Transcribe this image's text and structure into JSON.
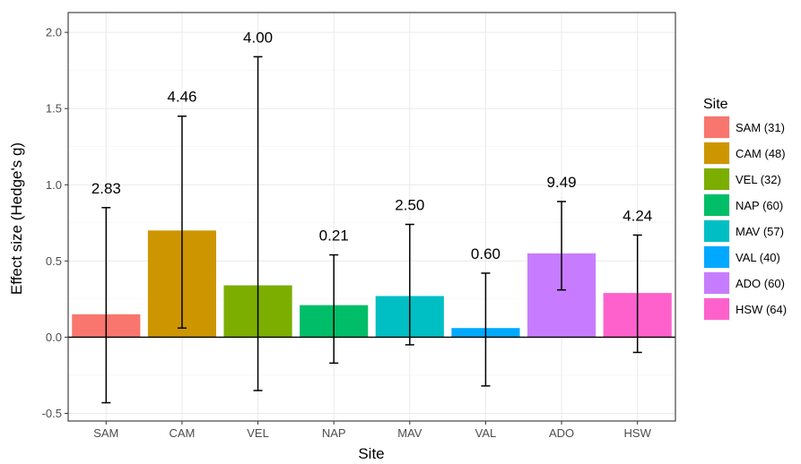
{
  "chart_data": {
    "type": "bar",
    "xlabel": "Site",
    "ylabel": "Effect size (Hedge's g)",
    "ylim": [
      -0.55,
      2.13
    ],
    "yticks": [
      -0.5,
      0.0,
      0.5,
      1.0,
      1.5,
      2.0
    ],
    "ytick_labels": [
      "-0.5",
      "0.0",
      "0.5",
      "1.0",
      "1.5",
      "2.0"
    ],
    "categories": [
      "SAM",
      "CAM",
      "VEL",
      "NAP",
      "MAV",
      "VAL",
      "ADO",
      "HSW"
    ],
    "values": [
      0.15,
      0.7,
      0.34,
      0.21,
      0.27,
      0.06,
      0.55,
      0.29
    ],
    "error_low": [
      -0.43,
      0.06,
      -0.35,
      -0.17,
      -0.05,
      -0.32,
      0.31,
      -0.1
    ],
    "error_high": [
      0.85,
      1.45,
      1.84,
      0.54,
      0.74,
      0.42,
      0.89,
      0.67
    ],
    "data_labels": [
      "2.83",
      "4.46",
      "4.00",
      "0.21",
      "2.50",
      "0.60",
      "9.49",
      "4.24"
    ],
    "colors": [
      "#F8766D",
      "#CD9600",
      "#7CAE00",
      "#00BE67",
      "#00BFC4",
      "#00A9FF",
      "#C77CFF",
      "#FF61CC"
    ],
    "grid": true,
    "zero_line": true,
    "legend": {
      "title": "Site",
      "position": "right",
      "entries": [
        "SAM (31)",
        "CAM (48)",
        "VEL (32)",
        "NAP (60)",
        "MAV (57)",
        "VAL (40)",
        "ADO (60)",
        "HSW (64)"
      ]
    }
  }
}
